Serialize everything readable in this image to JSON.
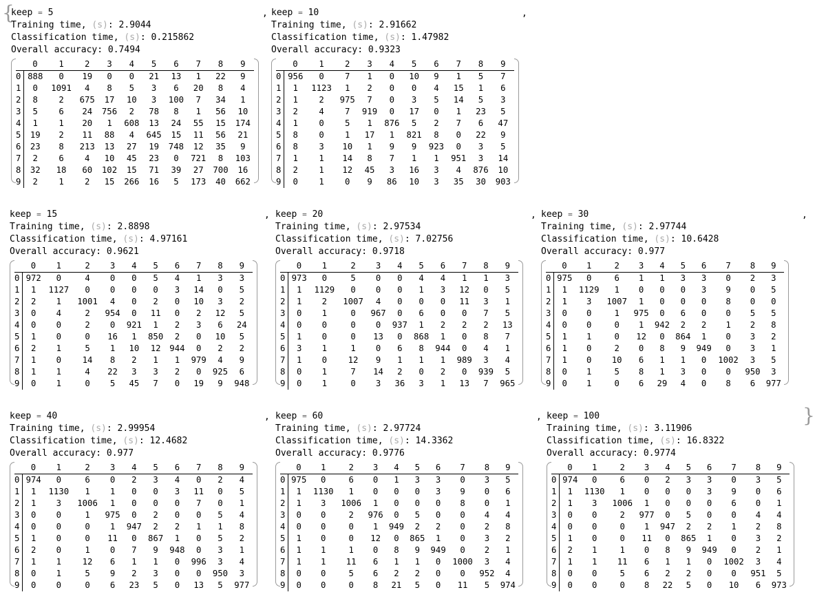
{
  "labels": {
    "keep": "keep",
    "eq": "=",
    "training": "Training time,",
    "classification": "Classification time,",
    "accuracy": "Overall accuracy:",
    "unit": "(s)",
    "colon": ":",
    "comma": ",",
    "open_brace": "{",
    "close_brace": "}"
  },
  "columns": [
    "0",
    "1",
    "2",
    "3",
    "4",
    "5",
    "6",
    "7",
    "8",
    "9"
  ],
  "results": [
    {
      "keep": "5",
      "train": "2.9044",
      "classify": "0.215862",
      "acc": "0.7494",
      "matrix": [
        [
          888,
          0,
          19,
          0,
          0,
          21,
          13,
          1,
          22,
          9
        ],
        [
          0,
          1091,
          4,
          8,
          5,
          3,
          6,
          20,
          8,
          4
        ],
        [
          8,
          2,
          675,
          17,
          10,
          3,
          100,
          7,
          34,
          1
        ],
        [
          5,
          6,
          24,
          756,
          2,
          78,
          8,
          1,
          56,
          10
        ],
        [
          1,
          1,
          20,
          1,
          608,
          13,
          24,
          55,
          15,
          174
        ],
        [
          19,
          2,
          11,
          88,
          4,
          645,
          15,
          11,
          56,
          21
        ],
        [
          23,
          8,
          213,
          13,
          27,
          19,
          748,
          12,
          35,
          9
        ],
        [
          2,
          6,
          4,
          10,
          45,
          23,
          0,
          721,
          8,
          103
        ],
        [
          32,
          18,
          60,
          102,
          15,
          71,
          39,
          27,
          700,
          16
        ],
        [
          2,
          1,
          2,
          15,
          266,
          16,
          5,
          173,
          40,
          662
        ]
      ]
    },
    {
      "keep": "10",
      "train": "2.91662",
      "classify": "1.47982",
      "acc": "0.9323",
      "matrix": [
        [
          956,
          0,
          7,
          1,
          0,
          10,
          9,
          1,
          5,
          7
        ],
        [
          1,
          1123,
          1,
          2,
          0,
          0,
          4,
          15,
          1,
          6
        ],
        [
          1,
          2,
          975,
          7,
          0,
          3,
          5,
          14,
          5,
          3
        ],
        [
          2,
          4,
          7,
          919,
          0,
          17,
          0,
          1,
          23,
          5
        ],
        [
          1,
          0,
          5,
          1,
          876,
          5,
          2,
          7,
          6,
          47
        ],
        [
          8,
          0,
          1,
          17,
          1,
          821,
          8,
          0,
          22,
          9
        ],
        [
          8,
          3,
          10,
          1,
          9,
          9,
          923,
          0,
          3,
          5
        ],
        [
          1,
          1,
          14,
          8,
          7,
          1,
          1,
          951,
          3,
          14
        ],
        [
          2,
          1,
          12,
          45,
          3,
          16,
          3,
          4,
          876,
          10
        ],
        [
          0,
          1,
          0,
          9,
          86,
          10,
          3,
          35,
          30,
          903
        ]
      ]
    },
    {
      "keep": "15",
      "train": "2.8898",
      "classify": "4.97161",
      "acc": "0.9621",
      "matrix": [
        [
          972,
          0,
          4,
          0,
          0,
          5,
          4,
          1,
          3,
          3
        ],
        [
          1,
          1127,
          0,
          0,
          0,
          0,
          3,
          14,
          0,
          5
        ],
        [
          2,
          1,
          1001,
          4,
          0,
          2,
          0,
          10,
          3,
          2
        ],
        [
          0,
          4,
          2,
          954,
          0,
          11,
          0,
          2,
          12,
          5
        ],
        [
          0,
          0,
          2,
          0,
          921,
          1,
          2,
          3,
          6,
          24
        ],
        [
          1,
          0,
          0,
          16,
          1,
          850,
          2,
          0,
          10,
          5
        ],
        [
          2,
          1,
          5,
          1,
          10,
          12,
          944,
          0,
          2,
          2
        ],
        [
          1,
          0,
          14,
          8,
          2,
          1,
          1,
          979,
          4,
          9
        ],
        [
          1,
          1,
          4,
          22,
          3,
          3,
          2,
          0,
          925,
          6
        ],
        [
          0,
          1,
          0,
          5,
          45,
          7,
          0,
          19,
          9,
          948
        ]
      ]
    },
    {
      "keep": "20",
      "train": "2.97534",
      "classify": "7.02756",
      "acc": "0.9718",
      "matrix": [
        [
          973,
          0,
          5,
          0,
          0,
          4,
          4,
          1,
          1,
          3
        ],
        [
          1,
          1129,
          0,
          0,
          0,
          1,
          3,
          12,
          0,
          5
        ],
        [
          1,
          2,
          1007,
          4,
          0,
          0,
          0,
          11,
          3,
          1
        ],
        [
          0,
          1,
          0,
          967,
          0,
          6,
          0,
          0,
          7,
          5
        ],
        [
          0,
          0,
          0,
          0,
          937,
          1,
          2,
          2,
          2,
          13
        ],
        [
          1,
          0,
          0,
          13,
          0,
          868,
          1,
          0,
          8,
          7
        ],
        [
          3,
          1,
          1,
          0,
          6,
          8,
          944,
          0,
          4,
          1
        ],
        [
          1,
          0,
          12,
          9,
          1,
          1,
          1,
          989,
          3,
          4
        ],
        [
          0,
          1,
          7,
          14,
          2,
          0,
          2,
          0,
          939,
          5
        ],
        [
          0,
          1,
          0,
          3,
          36,
          3,
          1,
          13,
          7,
          965
        ]
      ]
    },
    {
      "keep": "30",
      "train": "2.97744",
      "classify": "10.6428",
      "acc": "0.977",
      "matrix": [
        [
          975,
          0,
          6,
          1,
          1,
          3,
          3,
          0,
          2,
          3
        ],
        [
          1,
          1129,
          1,
          0,
          0,
          0,
          3,
          9,
          0,
          5
        ],
        [
          1,
          3,
          1007,
          1,
          0,
          0,
          0,
          8,
          0,
          0
        ],
        [
          0,
          0,
          1,
          975,
          0,
          6,
          0,
          0,
          5,
          5
        ],
        [
          0,
          0,
          0,
          1,
          942,
          2,
          2,
          1,
          2,
          8
        ],
        [
          1,
          1,
          0,
          12,
          0,
          864,
          1,
          0,
          3,
          2
        ],
        [
          1,
          0,
          2,
          0,
          8,
          9,
          949,
          0,
          3,
          1
        ],
        [
          1,
          0,
          10,
          6,
          1,
          1,
          0,
          1002,
          3,
          5
        ],
        [
          0,
          1,
          5,
          8,
          1,
          3,
          0,
          0,
          950,
          3
        ],
        [
          0,
          1,
          0,
          6,
          29,
          4,
          0,
          8,
          6,
          977
        ]
      ]
    },
    {
      "keep": "40",
      "train": "2.99954",
      "classify": "12.4682",
      "acc": "0.977",
      "matrix": [
        [
          974,
          0,
          6,
          0,
          2,
          3,
          4,
          0,
          2,
          4
        ],
        [
          1,
          1130,
          1,
          1,
          0,
          0,
          3,
          11,
          0,
          5
        ],
        [
          1,
          3,
          1006,
          1,
          0,
          0,
          0,
          7,
          0,
          1
        ],
        [
          0,
          0,
          1,
          975,
          0,
          2,
          0,
          0,
          5,
          4
        ],
        [
          0,
          0,
          0,
          1,
          947,
          2,
          2,
          1,
          1,
          8
        ],
        [
          1,
          0,
          0,
          11,
          0,
          867,
          1,
          0,
          5,
          2
        ],
        [
          2,
          0,
          1,
          0,
          7,
          9,
          948,
          0,
          3,
          1
        ],
        [
          1,
          1,
          12,
          6,
          1,
          1,
          0,
          996,
          3,
          4
        ],
        [
          0,
          1,
          5,
          9,
          2,
          3,
          0,
          0,
          950,
          3
        ],
        [
          0,
          0,
          0,
          6,
          23,
          5,
          0,
          13,
          5,
          977
        ]
      ]
    },
    {
      "keep": "60",
      "train": "2.97724",
      "classify": "14.3362",
      "acc": "0.9776",
      "matrix": [
        [
          975,
          0,
          6,
          0,
          1,
          3,
          3,
          0,
          3,
          5
        ],
        [
          1,
          1130,
          1,
          0,
          0,
          0,
          3,
          9,
          0,
          6
        ],
        [
          1,
          3,
          1006,
          1,
          0,
          0,
          0,
          8,
          0,
          1
        ],
        [
          0,
          0,
          2,
          976,
          0,
          5,
          0,
          0,
          4,
          4
        ],
        [
          0,
          0,
          0,
          1,
          949,
          2,
          2,
          0,
          2,
          8
        ],
        [
          1,
          0,
          0,
          12,
          0,
          865,
          1,
          0,
          3,
          2
        ],
        [
          1,
          1,
          1,
          0,
          8,
          9,
          949,
          0,
          2,
          1
        ],
        [
          1,
          1,
          11,
          6,
          1,
          1,
          0,
          1000,
          3,
          4
        ],
        [
          0,
          0,
          5,
          6,
          2,
          2,
          0,
          0,
          952,
          4
        ],
        [
          0,
          0,
          0,
          8,
          21,
          5,
          0,
          11,
          5,
          974
        ]
      ]
    },
    {
      "keep": "100",
      "train": "3.11906",
      "classify": "16.8322",
      "acc": "0.9774",
      "matrix": [
        [
          974,
          0,
          6,
          0,
          2,
          3,
          3,
          0,
          3,
          5
        ],
        [
          1,
          1130,
          1,
          0,
          0,
          0,
          3,
          9,
          0,
          6
        ],
        [
          1,
          3,
          1006,
          1,
          0,
          0,
          0,
          6,
          0,
          1
        ],
        [
          0,
          0,
          2,
          977,
          0,
          5,
          0,
          0,
          4,
          4
        ],
        [
          0,
          0,
          0,
          1,
          947,
          2,
          2,
          1,
          2,
          8
        ],
        [
          1,
          0,
          0,
          11,
          0,
          865,
          1,
          0,
          3,
          2
        ],
        [
          2,
          1,
          1,
          0,
          8,
          9,
          949,
          0,
          2,
          1
        ],
        [
          1,
          1,
          11,
          6,
          1,
          1,
          0,
          1002,
          3,
          4
        ],
        [
          0,
          0,
          5,
          6,
          2,
          2,
          0,
          0,
          951,
          5
        ],
        [
          0,
          0,
          0,
          8,
          22,
          5,
          0,
          10,
          6,
          973
        ]
      ]
    }
  ]
}
